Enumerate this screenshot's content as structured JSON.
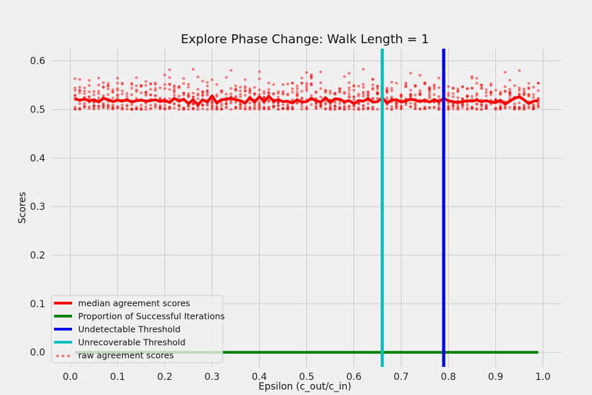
{
  "chart_data": {
    "type": "line",
    "title": "Explore Phase Change: Walk Length = 1",
    "xlabel": "Epsilon (c_out/c_in)",
    "ylabel": "Scores",
    "xlim": [
      -0.04,
      1.04
    ],
    "ylim": [
      -0.03,
      0.625
    ],
    "xticks": [
      0.0,
      0.1,
      0.2,
      0.3,
      0.4,
      0.5,
      0.6,
      0.7,
      0.8,
      0.9,
      1.0
    ],
    "xtick_labels": [
      "0.0",
      "0.1",
      "0.2",
      "0.3",
      "0.4",
      "0.5",
      "0.6",
      "0.7",
      "0.8",
      "0.9",
      "1.0"
    ],
    "yticks": [
      0.0,
      0.1,
      0.2,
      0.3,
      0.4,
      0.5,
      0.6
    ],
    "ytick_labels": [
      "0.0",
      "0.1",
      "0.2",
      "0.3",
      "0.4",
      "0.5",
      "0.6"
    ],
    "grid": true,
    "legend_position": "lower-left",
    "series": [
      {
        "name": "median agreement scores",
        "kind": "line",
        "color": "#ff0000",
        "x_start": 0.01,
        "x_step": 0.01,
        "values": [
          0.522,
          0.519,
          0.521,
          0.518,
          0.52,
          0.515,
          0.523,
          0.52,
          0.516,
          0.519,
          0.517,
          0.52,
          0.515,
          0.518,
          0.519,
          0.517,
          0.518,
          0.52,
          0.516,
          0.519,
          0.514,
          0.523,
          0.517,
          0.521,
          0.512,
          0.52,
          0.509,
          0.52,
          0.515,
          0.528,
          0.513,
          0.52,
          0.521,
          0.523,
          0.52,
          0.518,
          0.513,
          0.524,
          0.515,
          0.526,
          0.516,
          0.527,
          0.517,
          0.52,
          0.516,
          0.517,
          0.513,
          0.52,
          0.515,
          0.516,
          0.523,
          0.518,
          0.515,
          0.524,
          0.514,
          0.522,
          0.521,
          0.516,
          0.518,
          0.512,
          0.518,
          0.517,
          0.522,
          0.515,
          0.516,
          0.524,
          0.513,
          0.519,
          0.52,
          0.515,
          0.518,
          0.521,
          0.519,
          0.516,
          0.519,
          0.515,
          0.52,
          0.516,
          0.523,
          0.518,
          0.516,
          0.514,
          0.516,
          0.518,
          0.517,
          0.519,
          0.516,
          0.518,
          0.515,
          0.514,
          0.519,
          0.511,
          0.517,
          0.523,
          0.526,
          0.52,
          0.512,
          0.517,
          0.518
        ]
      },
      {
        "name": "Proportion of Successful Iterations",
        "kind": "line",
        "color": "#008000",
        "x": [
          0.01,
          0.99
        ],
        "values": [
          0.0,
          0.0
        ]
      },
      {
        "name": "Undetectable Threshold",
        "kind": "vline",
        "color": "#0000ff",
        "x": 0.79
      },
      {
        "name": "Unrecoverable Threshold",
        "kind": "vline",
        "color": "#00bfbf",
        "x": 0.66
      },
      {
        "name": "raw agreement scores",
        "kind": "scatter",
        "color": "#ff0000",
        "x_range": [
          0.01,
          0.99
        ],
        "x_step": 0.01,
        "points_per_x": 10,
        "y_range": [
          0.5,
          0.6
        ]
      }
    ]
  }
}
